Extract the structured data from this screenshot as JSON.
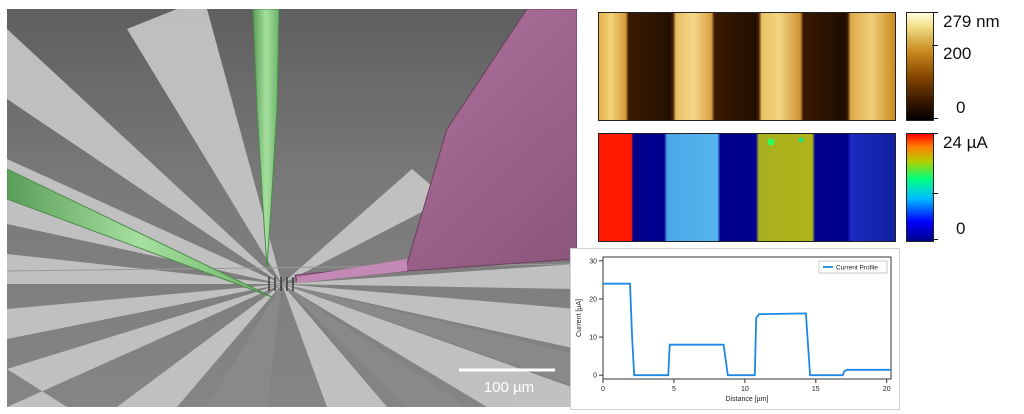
{
  "sem_panel": {
    "scale_bar_label": "100 µm",
    "colors": {
      "probe_green": "#8fd08a",
      "probe_green_dark": "#5a9e59",
      "probe_purple": "#a0678f",
      "probe_purple_light": "#c488b4",
      "electrode_light": "#c9c9c9",
      "electrode_dark": "#8f8f8f",
      "background": "#6e6e6e"
    }
  },
  "afm_height": {
    "colorbar_labels": [
      "279 nm",
      "200",
      "0"
    ],
    "colormap": [
      "#000000",
      "#3a1a00",
      "#8a4a00",
      "#c98a1e",
      "#f3e08a",
      "#ffffe0"
    ]
  },
  "current_map": {
    "colorbar_labels": [
      "24 µA",
      "0"
    ],
    "colormap": [
      "#00008b",
      "#0000ff",
      "#00bfff",
      "#00ff7f",
      "#b0d000",
      "#ff0000"
    ]
  },
  "chart_data": {
    "type": "line",
    "series": [
      {
        "name": "Current Profile",
        "color": "#1e88e5",
        "x": [
          0,
          1.9,
          2.05,
          2.2,
          4.6,
          4.7,
          4.8,
          8.5,
          8.65,
          8.8,
          10.7,
          10.8,
          11.0,
          14.3,
          14.45,
          14.6,
          16.9,
          17.0,
          17.2,
          20.3
        ],
        "y": [
          24,
          24,
          10,
          0,
          0,
          8,
          8,
          8,
          4,
          0,
          0,
          15,
          16,
          16.2,
          8,
          0,
          0,
          1,
          1.4,
          1.4
        ]
      }
    ],
    "xlabel": "Distance [µm]",
    "ylabel": "Current [µA]",
    "xlim": [
      0,
      20.3
    ],
    "ylim": [
      -1,
      31
    ],
    "xticks": [
      0,
      5,
      10,
      15,
      20
    ],
    "yticks": [
      0,
      10,
      20,
      30
    ],
    "grid": false,
    "legend": "top-right"
  }
}
